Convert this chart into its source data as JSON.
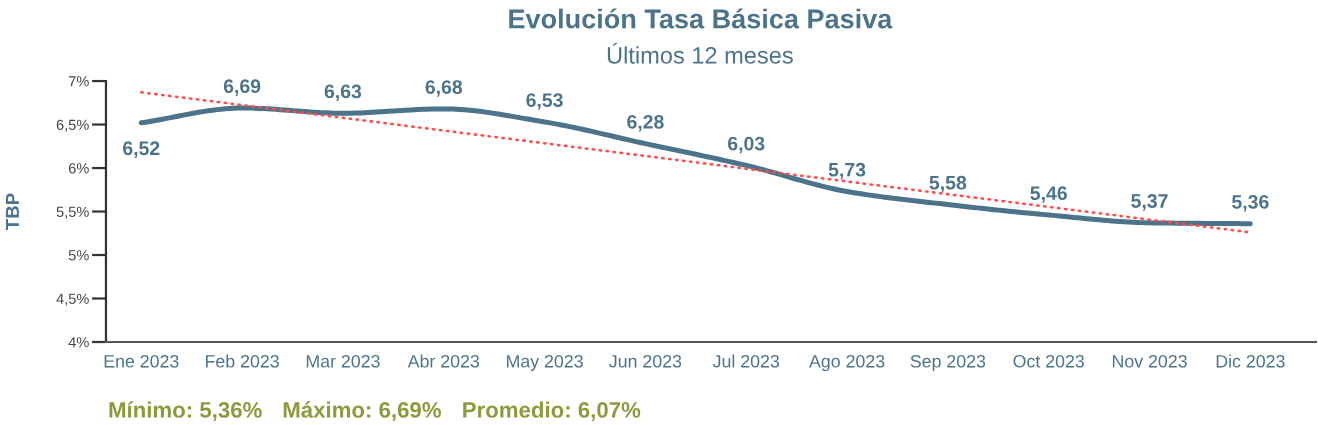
{
  "chart_data": {
    "type": "line",
    "title": "Evolución Tasa Básica Pasiva",
    "subtitle": "Últimos 12 meses",
    "ylabel": "TBP",
    "categories": [
      "Ene 2023",
      "Feb 2023",
      "Mar 2023",
      "Abr 2023",
      "May 2023",
      "Jun 2023",
      "Jul 2023",
      "Ago 2023",
      "Sep 2023",
      "Oct 2023",
      "Nov 2023",
      "Dic 2023"
    ],
    "series": [
      {
        "color": "#4b7389",
        "values": [
          6.52,
          6.69,
          6.63,
          6.68,
          6.53,
          6.28,
          6.03,
          5.73,
          5.58,
          5.46,
          5.37,
          5.36
        ],
        "value_labels": [
          "6,52",
          "6,69",
          "6,63",
          "6,68",
          "6,53",
          "6,28",
          "6,03",
          "5,73",
          "5,58",
          "5,46",
          "5,37",
          "5,36"
        ]
      },
      {
        "color": "#ff4b4b",
        "line_style": "dotted",
        "x": [
          "Ene 2023",
          "Dic 2023"
        ],
        "values": [
          6.87,
          5.26
        ]
      }
    ],
    "ylim": [
      4,
      7
    ],
    "yticks": [
      {
        "value": 4,
        "label": "4%"
      },
      {
        "value": 4.5,
        "label": "4,5%"
      },
      {
        "value": 5,
        "label": "5%"
      },
      {
        "value": 5.5,
        "label": "5,5%"
      },
      {
        "value": 6,
        "label": "6%"
      },
      {
        "value": 6.5,
        "label": "6,5%"
      },
      {
        "value": 7,
        "label": "7%"
      }
    ],
    "grid": false,
    "annotations": [
      "Mínimo: 5,36%",
      "Máximo: 6,69%",
      "Promedio: 6,07%"
    ]
  }
}
